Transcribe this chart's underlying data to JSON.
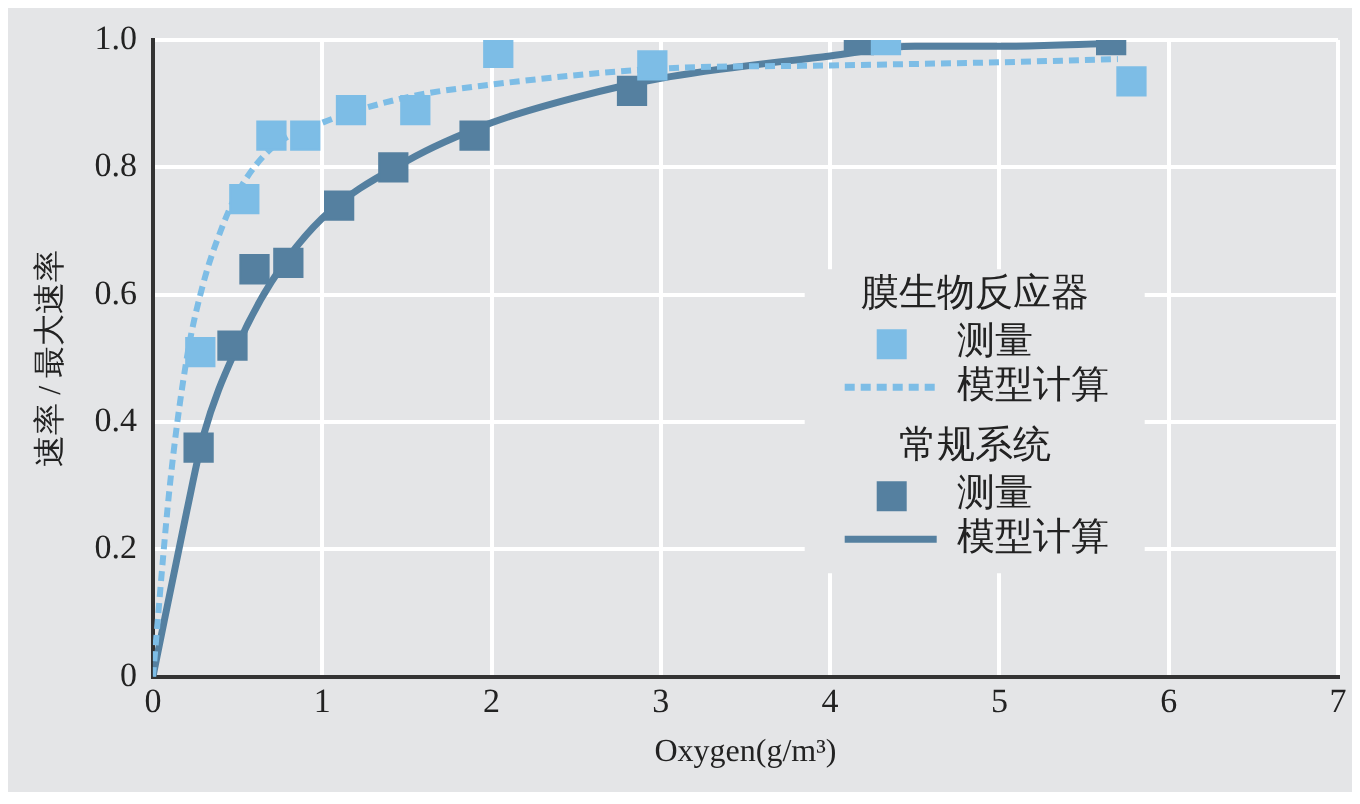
{
  "chart_data": {
    "type": "scatter",
    "xlabel": "Oxygen(g/m³)",
    "ylabel": "速率 / 最大速率",
    "xlim": [
      0,
      7
    ],
    "xticks": [
      0,
      1,
      2,
      3,
      4,
      5,
      6,
      7
    ],
    "ylim": [
      0,
      1
    ],
    "yticks": [
      0,
      0.2,
      0.4,
      0.6,
      0.8,
      {
        "value": 1,
        "label": "1.0"
      }
    ],
    "grid": true,
    "legend": "right",
    "marker": "square",
    "annotations": [
      "膜生物反应器",
      "常规系统"
    ],
    "series": [
      {
        "name": "测量",
        "color": "#7dbde6",
        "x": [
          0.28,
          0.54,
          0.7,
          0.9,
          1.17,
          1.55,
          2.04,
          2.95,
          4.33,
          5.78
        ],
        "values": [
          0.51,
          0.75,
          0.85,
          0.85,
          0.89,
          0.89,
          0.98,
          0.96,
          1.0,
          0.935
        ]
      },
      {
        "name": "模型计算",
        "type": "line",
        "color": "#7dbde6",
        "line_style": "dashed",
        "marker": "none",
        "x": [
          0,
          0.1,
          0.2,
          0.3,
          0.4,
          0.5,
          0.7,
          1,
          1.5,
          2,
          3,
          4,
          5,
          5.7
        ],
        "values": [
          0,
          0.3,
          0.5,
          0.62,
          0.7,
          0.76,
          0.83,
          0.87,
          0.91,
          0.93,
          0.955,
          0.96,
          0.965,
          0.97
        ]
      },
      {
        "name": "测量",
        "color": "#5580a0",
        "x": [
          0.27,
          0.47,
          0.6,
          0.8,
          1.1,
          1.42,
          1.9,
          2.83,
          4.17,
          5.66
        ],
        "values": [
          0.36,
          0.52,
          0.64,
          0.65,
          0.74,
          0.8,
          0.85,
          0.92,
          1.0,
          1.0
        ]
      },
      {
        "name": "模型计算",
        "type": "line",
        "color": "#5580a0",
        "line_style": "solid",
        "marker": "none",
        "x": [
          0,
          0.2,
          0.3,
          0.5,
          0.7,
          1,
          1.5,
          2,
          2.5,
          3,
          4,
          4.5,
          5,
          5.7
        ],
        "values": [
          0,
          0.26,
          0.38,
          0.52,
          0.62,
          0.72,
          0.81,
          0.87,
          0.91,
          0.94,
          0.975,
          0.99,
          0.99,
          0.995
        ]
      }
    ]
  }
}
